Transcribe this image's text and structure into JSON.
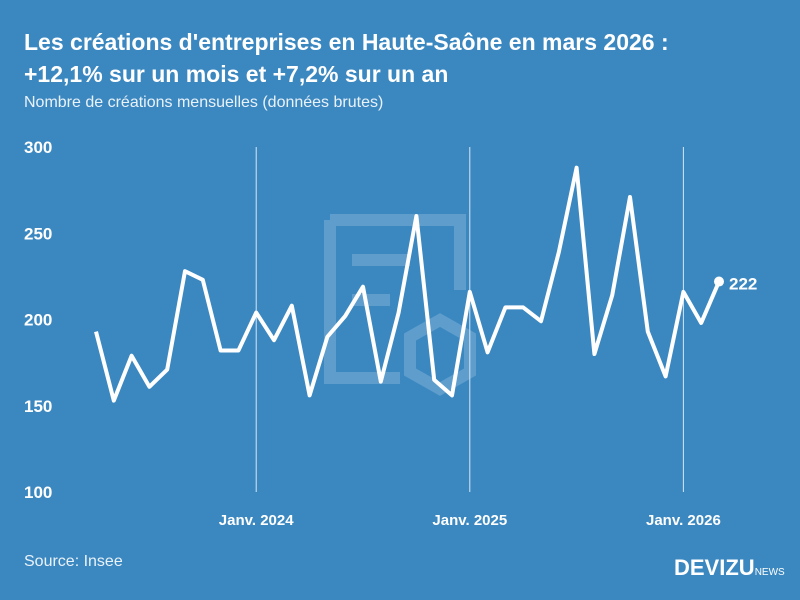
{
  "title_line1": "Les créations d'entreprises en Haute-Saône en mars 2026 :",
  "title_line2": "+12,1% sur un mois et +7,2% sur un an",
  "subtitle": "Nombre de créations mensuelles (données brutes)",
  "source": "Source: Insee",
  "logo": {
    "main": "DEVIZU",
    "suffix": "NEWS"
  },
  "colors": {
    "background": "#3b88c1",
    "line": "#ffffff"
  },
  "chart_data": {
    "type": "line",
    "ylim": [
      100,
      300
    ],
    "yticks": [
      100,
      150,
      200,
      250,
      300
    ],
    "xtick_labels": [
      {
        "month": "2024-01",
        "label": "Janv. 2024"
      },
      {
        "month": "2025-01",
        "label": "Janv. 2025"
      },
      {
        "month": "2026-01",
        "label": "Janv. 2026"
      }
    ],
    "x": [
      "2023-04",
      "2023-05",
      "2023-06",
      "2023-07",
      "2023-08",
      "2023-09",
      "2023-10",
      "2023-11",
      "2023-12",
      "2024-01",
      "2024-02",
      "2024-03",
      "2024-04",
      "2024-05",
      "2024-06",
      "2024-07",
      "2024-08",
      "2024-09",
      "2024-10",
      "2024-11",
      "2024-12",
      "2025-01",
      "2025-02",
      "2025-03",
      "2025-04",
      "2025-05",
      "2025-06",
      "2025-07",
      "2025-08",
      "2025-09",
      "2025-10",
      "2025-11",
      "2025-12",
      "2026-01",
      "2026-02",
      "2026-03"
    ],
    "values": [
      193,
      153,
      179,
      161,
      171,
      228,
      223,
      182,
      182,
      204,
      188,
      208,
      156,
      190,
      202,
      219,
      164,
      204,
      260,
      165,
      156,
      216,
      181,
      207,
      207,
      199,
      239,
      288,
      180,
      214,
      271,
      193,
      167,
      216,
      198,
      222
    ],
    "last_label": "222",
    "grid": "vertical lines at January"
  }
}
